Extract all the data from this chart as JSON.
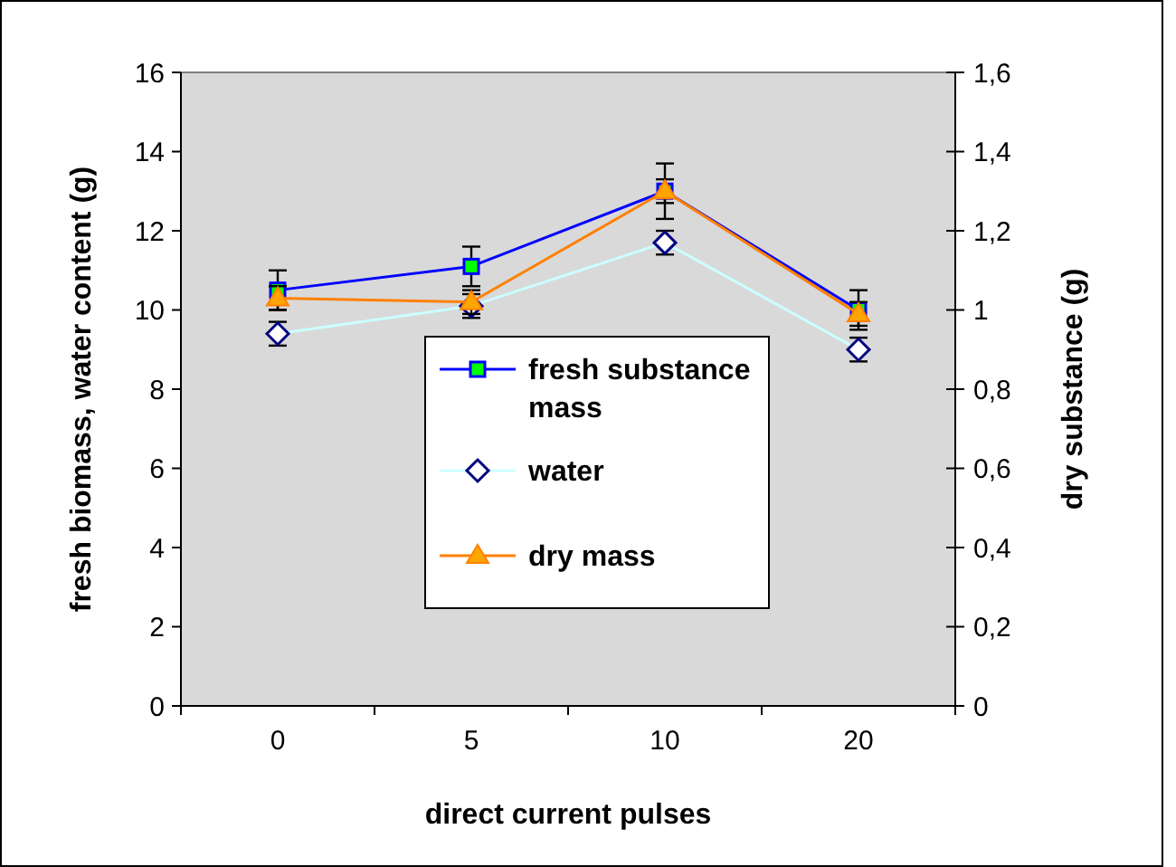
{
  "chart_data": {
    "type": "line",
    "xlabel": "direct current pulses",
    "ylabel": "fresh biomass, water content (g)",
    "y2label": "dry substance (g)",
    "categories": [
      "0",
      "5",
      "10",
      "20"
    ],
    "ylim": [
      0,
      16
    ],
    "yticks": [
      0,
      2,
      4,
      6,
      8,
      10,
      12,
      14,
      16
    ],
    "y2lim": [
      0,
      1.6
    ],
    "y2ticks": [
      {
        "value": 0,
        "label": "0"
      },
      {
        "value": 0.2,
        "label": "0,2"
      },
      {
        "value": 0.4,
        "label": "0,4"
      },
      {
        "value": 0.6,
        "label": "0,6"
      },
      {
        "value": 0.8,
        "label": "0,8"
      },
      {
        "value": 1,
        "label": "1"
      },
      {
        "value": 1.2,
        "label": "1,2"
      },
      {
        "value": 1.4,
        "label": "1,4"
      },
      {
        "value": 1.6,
        "label": "1,6"
      }
    ],
    "legend": "center",
    "grid": false,
    "series": [
      {
        "name": "fresh substance mass",
        "color": "#0000ff",
        "marker": "square",
        "values": [
          10.5,
          11.1,
          13.0,
          10.0
        ],
        "errors": [
          0.5,
          0.5,
          0.7,
          0.5
        ]
      },
      {
        "name": "water",
        "color": "#ccffff",
        "marker": "diamond",
        "values": [
          9.4,
          10.1,
          11.7,
          9.0
        ],
        "errors": [
          0.3,
          0.3,
          0.3,
          0.3
        ]
      },
      {
        "name": "dry mass",
        "color": "#ff8000",
        "marker": "triangle",
        "axis": "y2",
        "values": [
          1.03,
          1.02,
          1.3,
          0.99
        ],
        "errors": [
          0.03,
          0.03,
          0.03,
          0.03
        ]
      }
    ]
  }
}
